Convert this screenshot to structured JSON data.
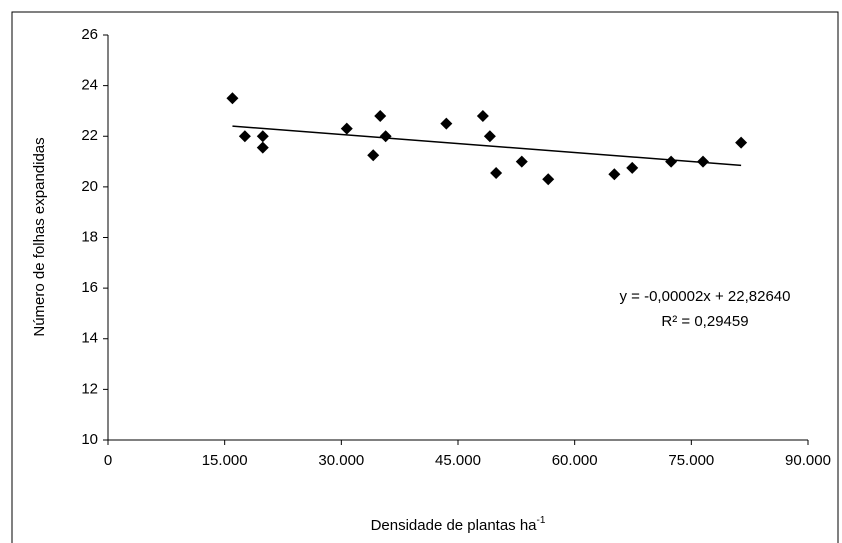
{
  "chart_data": {
    "type": "scatter",
    "xlabel": "Densidade de plantas ha",
    "xlabel_sup": "-1",
    "ylabel": "Número de folhas expandidas",
    "x": [
      16000,
      17600,
      19900,
      19900,
      30700,
      34100,
      35000,
      35700,
      43500,
      48200,
      49100,
      49900,
      53200,
      56600,
      65100,
      67400,
      72400,
      76500,
      81400
    ],
    "values": [
      23.5,
      22.0,
      22.0,
      21.55,
      22.3,
      21.25,
      22.8,
      22.0,
      22.5,
      22.8,
      22.0,
      20.55,
      21.0,
      20.3,
      20.5,
      20.75,
      21.0,
      21.0,
      21.75
    ],
    "color": "#000000",
    "trendline": {
      "x": [
        16000,
        81400
      ],
      "y": [
        22.4,
        20.85
      ]
    },
    "annotations": [
      "y = -0,00002x + 22,82640",
      "R² = 0,29459"
    ],
    "xlim": [
      0,
      90000
    ],
    "xticks": [
      0,
      {
        "value": 15000,
        "label": "15.000"
      },
      {
        "value": 30000,
        "label": "30.000"
      },
      {
        "value": 45000,
        "label": "45.000"
      },
      {
        "value": 60000,
        "label": "60.000"
      },
      {
        "value": 75000,
        "label": "75.000"
      },
      {
        "value": 90000,
        "label": "90.000"
      }
    ],
    "ylim": [
      10,
      26
    ],
    "yticks": [
      10,
      12,
      14,
      16,
      18,
      20,
      22,
      24,
      26
    ],
    "grid": false
  }
}
